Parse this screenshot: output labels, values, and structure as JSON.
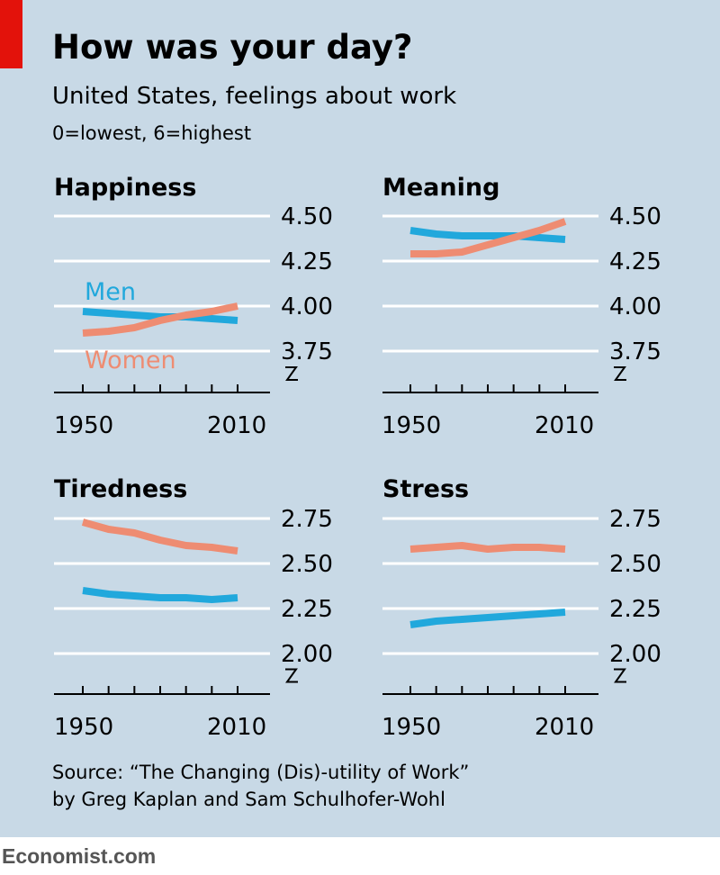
{
  "header": {
    "title": "How was your day?",
    "subtitle": "United States, feelings about work",
    "scale_note": "0=lowest, 6=highest"
  },
  "colors": {
    "men": "#21a8dc",
    "women": "#ee8c72",
    "background": "#c8d9e6",
    "brand_red": "#e3120b"
  },
  "chart_data": [
    {
      "type": "line",
      "title": "Happiness",
      "x": [
        1950,
        1960,
        1970,
        1980,
        1990,
        2000,
        2010
      ],
      "ylim": [
        3.75,
        4.5
      ],
      "yticks": [
        "4.50",
        "4.25",
        "4.00",
        "3.75"
      ],
      "xtick_labels": [
        "1950",
        "2010"
      ],
      "axis_break": true,
      "series": [
        {
          "name": "Men",
          "values": [
            3.97,
            3.96,
            3.95,
            3.94,
            3.94,
            3.93,
            3.92
          ]
        },
        {
          "name": "Women",
          "values": [
            3.85,
            3.86,
            3.88,
            3.92,
            3.95,
            3.97,
            4.0
          ]
        }
      ]
    },
    {
      "type": "line",
      "title": "Meaning",
      "x": [
        1950,
        1960,
        1970,
        1980,
        1990,
        2000,
        2010
      ],
      "ylim": [
        3.75,
        4.5
      ],
      "yticks": [
        "4.50",
        "4.25",
        "4.00",
        "3.75"
      ],
      "xtick_labels": [
        "1950",
        "2010"
      ],
      "axis_break": true,
      "series": [
        {
          "name": "Men",
          "values": [
            4.42,
            4.4,
            4.39,
            4.39,
            4.39,
            4.38,
            4.37
          ]
        },
        {
          "name": "Women",
          "values": [
            4.29,
            4.29,
            4.3,
            4.34,
            4.38,
            4.42,
            4.47
          ]
        }
      ]
    },
    {
      "type": "line",
      "title": "Tiredness",
      "x": [
        1950,
        1960,
        1970,
        1980,
        1990,
        2000,
        2010
      ],
      "ylim": [
        2.0,
        2.75
      ],
      "yticks": [
        "2.75",
        "2.50",
        "2.25",
        "2.00"
      ],
      "xtick_labels": [
        "1950",
        "2010"
      ],
      "axis_break": true,
      "series": [
        {
          "name": "Men",
          "values": [
            2.35,
            2.33,
            2.32,
            2.31,
            2.31,
            2.3,
            2.31
          ]
        },
        {
          "name": "Women",
          "values": [
            2.73,
            2.69,
            2.67,
            2.63,
            2.6,
            2.59,
            2.57
          ]
        }
      ]
    },
    {
      "type": "line",
      "title": "Stress",
      "x": [
        1950,
        1960,
        1970,
        1980,
        1990,
        2000,
        2010
      ],
      "ylim": [
        2.0,
        2.75
      ],
      "yticks": [
        "2.75",
        "2.50",
        "2.25",
        "2.00"
      ],
      "xtick_labels": [
        "1950",
        "2010"
      ],
      "axis_break": true,
      "series": [
        {
          "name": "Men",
          "values": [
            2.16,
            2.18,
            2.19,
            2.2,
            2.21,
            2.22,
            2.23
          ]
        },
        {
          "name": "Women",
          "values": [
            2.58,
            2.59,
            2.6,
            2.58,
            2.59,
            2.59,
            2.58
          ]
        }
      ]
    }
  ],
  "labels": {
    "men": "Men",
    "women": "Women"
  },
  "source": {
    "line1": "Source: “The Changing (Dis)-utility of Work”",
    "line2": "by Greg Kaplan and Sam Schulhofer-Wohl"
  },
  "logo": "Economist.com"
}
